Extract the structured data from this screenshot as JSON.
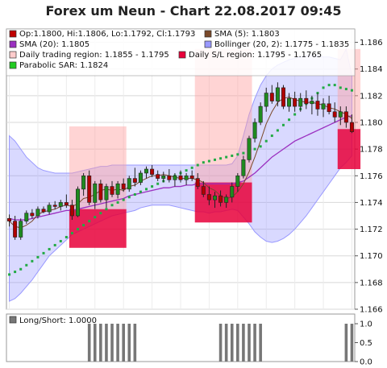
{
  "chart_data": [
    {
      "type": "candlestick",
      "title": "Forex um Neun - Chart 22.08.2017 09:45",
      "ylim": [
        1.166,
        1.187
      ],
      "y_ticks": [
        "1.166",
        "1.168",
        "1.170",
        "1.172",
        "1.174",
        "1.176",
        "1.178",
        "1.180",
        "1.182",
        "1.184",
        "1.186"
      ],
      "grid": true,
      "legend_placement": "top-left",
      "legend": [
        {
          "label": "Op:1.1800, Hi:1.1806, Lo:1.1792, Cl:1.1793",
          "color": "#c00000"
        },
        {
          "label": "SMA (5): 1.1803",
          "color": "#7b4a2a"
        },
        {
          "label": "SMA (20): 1.1805",
          "color": "#9b30c0"
        },
        {
          "label": "Bollinger (20, 2): 1.1775 - 1.1835",
          "color": "#9999ff"
        },
        {
          "label": "Daily trading region: 1.1855 - 1.1795",
          "color": "#ffcccc"
        },
        {
          "label": "Daily S/L region: 1.1795 - 1.1765",
          "color": "#e8003a"
        },
        {
          "label": "Parabolic SAR: 1.1824",
          "color": "#22cc22"
        }
      ],
      "candles": [
        [
          1.1728,
          1.1731,
          1.1722,
          1.1726
        ],
        [
          1.1726,
          1.173,
          1.1712,
          1.1714
        ],
        [
          1.1714,
          1.1728,
          1.1712,
          1.1726
        ],
        [
          1.1726,
          1.1734,
          1.1724,
          1.1732
        ],
        [
          1.1732,
          1.1735,
          1.1728,
          1.173
        ],
        [
          1.173,
          1.1737,
          1.1728,
          1.1735
        ],
        [
          1.1735,
          1.1737,
          1.1732,
          1.1733
        ],
        [
          1.1733,
          1.174,
          1.1731,
          1.1738
        ],
        [
          1.1738,
          1.1741,
          1.1735,
          1.1737
        ],
        [
          1.1737,
          1.1742,
          1.1734,
          1.174
        ],
        [
          1.174,
          1.1746,
          1.1736,
          1.1738
        ],
        [
          1.1738,
          1.1742,
          1.1727,
          1.173
        ],
        [
          1.173,
          1.1752,
          1.1729,
          1.175
        ],
        [
          1.175,
          1.1762,
          1.1745,
          1.176
        ],
        [
          1.176,
          1.1764,
          1.1738,
          1.174
        ],
        [
          1.174,
          1.1756,
          1.1735,
          1.1754
        ],
        [
          1.1754,
          1.1757,
          1.174,
          1.1742
        ],
        [
          1.1742,
          1.1754,
          1.1736,
          1.1752
        ],
        [
          1.1752,
          1.1756,
          1.1744,
          1.1746
        ],
        [
          1.1746,
          1.1756,
          1.1743,
          1.1754
        ],
        [
          1.1754,
          1.1758,
          1.1748,
          1.175
        ],
        [
          1.175,
          1.176,
          1.1748,
          1.1758
        ],
        [
          1.1758,
          1.1766,
          1.1752,
          1.1755
        ],
        [
          1.1755,
          1.1764,
          1.1753,
          1.1762
        ],
        [
          1.1762,
          1.1767,
          1.1758,
          1.1765
        ],
        [
          1.1765,
          1.1768,
          1.1759,
          1.1761
        ],
        [
          1.1761,
          1.1764,
          1.1756,
          1.1758
        ],
        [
          1.1758,
          1.1763,
          1.1755,
          1.176
        ],
        [
          1.176,
          1.1765,
          1.1755,
          1.1757
        ],
        [
          1.1757,
          1.1762,
          1.1752,
          1.176
        ],
        [
          1.176,
          1.1764,
          1.1755,
          1.1757
        ],
        [
          1.1757,
          1.1762,
          1.1753,
          1.176
        ],
        [
          1.176,
          1.1764,
          1.1756,
          1.1758
        ],
        [
          1.1758,
          1.1762,
          1.175,
          1.1752
        ],
        [
          1.1752,
          1.1756,
          1.1744,
          1.1746
        ],
        [
          1.1746,
          1.1752,
          1.1738,
          1.1742
        ],
        [
          1.1742,
          1.1748,
          1.1736,
          1.1745
        ],
        [
          1.1745,
          1.1749,
          1.1737,
          1.174
        ],
        [
          1.174,
          1.1746,
          1.1736,
          1.1744
        ],
        [
          1.1744,
          1.1755,
          1.174,
          1.1752
        ],
        [
          1.1752,
          1.1762,
          1.1748,
          1.176
        ],
        [
          1.176,
          1.1775,
          1.1758,
          1.1772
        ],
        [
          1.1772,
          1.179,
          1.177,
          1.1788
        ],
        [
          1.1788,
          1.1803,
          1.1785,
          1.18
        ],
        [
          1.18,
          1.1815,
          1.1798,
          1.1812
        ],
        [
          1.1812,
          1.1826,
          1.1808,
          1.1822
        ],
        [
          1.1822,
          1.1828,
          1.1814,
          1.1816
        ],
        [
          1.1816,
          1.183,
          1.1812,
          1.1826
        ],
        [
          1.1826,
          1.1828,
          1.181,
          1.1812
        ],
        [
          1.1812,
          1.1822,
          1.1808,
          1.1818
        ],
        [
          1.1818,
          1.1823,
          1.1808,
          1.1812
        ],
        [
          1.1812,
          1.1822,
          1.1808,
          1.1818
        ],
        [
          1.1818,
          1.1824,
          1.181,
          1.1814
        ],
        [
          1.1814,
          1.182,
          1.1806,
          1.1816
        ],
        [
          1.1816,
          1.1822,
          1.1805,
          1.181
        ],
        [
          1.181,
          1.1818,
          1.1804,
          1.1814
        ],
        [
          1.1814,
          1.182,
          1.1806,
          1.1808
        ],
        [
          1.1808,
          1.1815,
          1.18,
          1.1804
        ],
        [
          1.1804,
          1.1812,
          1.1798,
          1.1808
        ],
        [
          1.1808,
          1.1812,
          1.1796,
          1.18
        ],
        [
          1.18,
          1.1806,
          1.1792,
          1.1793
        ]
      ],
      "sma5": [
        1.1726,
        1.1722,
        1.1721,
        1.1723,
        1.1726,
        1.1731,
        1.1733,
        1.1734,
        1.1735,
        1.1737,
        1.1738,
        1.1737,
        1.1739,
        1.1743,
        1.1744,
        1.1746,
        1.1749,
        1.175,
        1.1749,
        1.175,
        1.1749,
        1.1752,
        1.1753,
        1.1756,
        1.1758,
        1.176,
        1.176,
        1.1761,
        1.176,
        1.1759,
        1.1758,
        1.1758,
        1.1758,
        1.1757,
        1.1755,
        1.1751,
        1.1749,
        1.1745,
        1.1743,
        1.1744,
        1.1748,
        1.1754,
        1.1763,
        1.1774,
        1.1786,
        1.1799,
        1.1808,
        1.1815,
        1.1818,
        1.1819,
        1.1817,
        1.1816,
        1.1815,
        1.1815,
        1.1814,
        1.1813,
        1.1811,
        1.181,
        1.1808,
        1.1806,
        1.1803
      ],
      "sma20": [
        1.1728,
        1.1727,
        1.1727,
        1.1727,
        1.1728,
        1.1729,
        1.173,
        1.1731,
        1.1732,
        1.1733,
        1.1734,
        1.1734,
        1.1735,
        1.1736,
        1.1737,
        1.1738,
        1.1739,
        1.174,
        1.1741,
        1.1742,
        1.1743,
        1.1745,
        1.1746,
        1.1747,
        1.1748,
        1.1749,
        1.175,
        1.1751,
        1.1751,
        1.1752,
        1.1752,
        1.1753,
        1.1753,
        1.1754,
        1.1754,
        1.1754,
        1.1754,
        1.1754,
        1.1754,
        1.1754,
        1.1755,
        1.1756,
        1.1759,
        1.1762,
        1.1766,
        1.177,
        1.1774,
        1.1777,
        1.178,
        1.1783,
        1.1786,
        1.1788,
        1.179,
        1.1792,
        1.1794,
        1.1796,
        1.1798,
        1.18,
        1.1802,
        1.1804,
        1.1805
      ],
      "boll_upper": [
        1.179,
        1.1786,
        1.178,
        1.1774,
        1.177,
        1.1766,
        1.1764,
        1.1763,
        1.1762,
        1.1762,
        1.1762,
        1.1762,
        1.1763,
        1.1764,
        1.1765,
        1.1766,
        1.1767,
        1.1767,
        1.1768,
        1.1768,
        1.1768,
        1.1768,
        1.1768,
        1.1768,
        1.1768,
        1.1768,
        1.1768,
        1.1768,
        1.1768,
        1.1768,
        1.1768,
        1.1768,
        1.1768,
        1.1768,
        1.1768,
        1.1768,
        1.1768,
        1.1768,
        1.1768,
        1.1769,
        1.1775,
        1.179,
        1.1806,
        1.1818,
        1.1828,
        1.1835,
        1.184,
        1.1843,
        1.1845,
        1.1847,
        1.1848,
        1.1849,
        1.185,
        1.185,
        1.185,
        1.1849,
        1.1849,
        1.1848,
        1.1847,
        1.1855,
        1.1835
      ],
      "boll_lower": [
        1.1666,
        1.1668,
        1.1672,
        1.1677,
        1.1682,
        1.1688,
        1.1694,
        1.17,
        1.1704,
        1.1708,
        1.1712,
        1.1716,
        1.1718,
        1.172,
        1.1722,
        1.1724,
        1.1726,
        1.1728,
        1.173,
        1.1731,
        1.1732,
        1.1733,
        1.1734,
        1.1736,
        1.1737,
        1.1738,
        1.1738,
        1.1738,
        1.1738,
        1.1737,
        1.1736,
        1.1735,
        1.1734,
        1.1733,
        1.1733,
        1.1732,
        1.1733,
        1.1733,
        1.1734,
        1.1735,
        1.1734,
        1.1729,
        1.1724,
        1.1718,
        1.1714,
        1.1711,
        1.171,
        1.1711,
        1.1713,
        1.1716,
        1.172,
        1.1725,
        1.173,
        1.1736,
        1.1742,
        1.1748,
        1.1754,
        1.176,
        1.1766,
        1.177,
        1.1775
      ],
      "psar": [
        1.1686,
        1.1688,
        1.169,
        1.1693,
        1.1696,
        1.1699,
        1.1702,
        1.1705,
        1.1708,
        1.1711,
        1.1714,
        1.1717,
        1.172,
        1.1723,
        1.1726,
        1.1729,
        1.1732,
        1.1735,
        1.1738,
        1.174,
        1.1742,
        1.1744,
        1.1746,
        1.1748,
        1.175,
        1.1752,
        1.1754,
        1.1756,
        1.1758,
        1.176,
        1.1762,
        1.1764,
        1.1766,
        1.1768,
        1.177,
        1.1771,
        1.1772,
        1.1773,
        1.1774,
        1.1775,
        1.1776,
        1.1777,
        1.1778,
        1.178,
        1.1782,
        1.1786,
        1.179,
        1.1794,
        1.1798,
        1.1802,
        1.1806,
        1.181,
        1.1814,
        1.1818,
        1.1822,
        1.1826,
        1.1828,
        1.1828,
        1.1826,
        1.1825,
        1.1824
      ],
      "regions": [
        {
          "start": 11,
          "end": 20,
          "trade_top": 1.1797,
          "trade_bottom": 1.1735,
          "sl_top": 1.1735,
          "sl_bottom": 1.1706
        },
        {
          "start": 33,
          "end": 42,
          "trade_top": 1.1855,
          "trade_bottom": 1.1755,
          "sl_top": 1.1755,
          "sl_bottom": 1.1725
        },
        {
          "start": 58,
          "end": 61,
          "trade_top": 1.1855,
          "trade_bottom": 1.1795,
          "sl_top": 1.1795,
          "sl_bottom": 1.1765
        }
      ]
    },
    {
      "type": "bar",
      "legend": [
        {
          "label": "Long/Short: 1.0000",
          "color": "#777777"
        }
      ],
      "ylim": [
        0,
        1.0
      ],
      "y_ticks": [
        "0.0",
        "0.5",
        "1.0"
      ],
      "bar_ranges": [
        [
          14,
          22
        ],
        [
          37,
          44
        ],
        [
          59,
          60
        ]
      ],
      "bar_value": 1.0
    }
  ]
}
